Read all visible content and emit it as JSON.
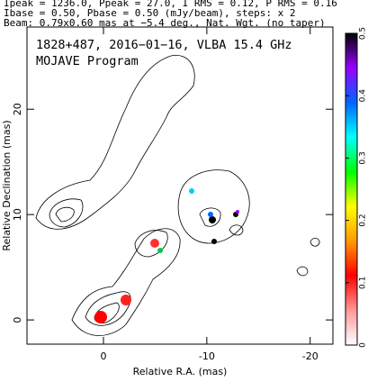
{
  "chart_data": {
    "type": "contour",
    "header": [
      "Ipeak = 1236.0, Ppeak = 27.0, I RMS = 0.12, P RMS = 0.16",
      "Ibase = 0.50, Pbase = 0.50 (mJy/beam), steps: x 2",
      "Beam: 0.79x0.60 mas at −5.4 deg., Nat. Wgt. (no taper)"
    ],
    "title": "1828+487, 2016−01−16, VLBA 15.4 GHz",
    "subtitle": "MOJAVE Program",
    "xlabel": "Relative R.A. (mas)",
    "ylabel": "Relative Declination (mas)",
    "xlim": [
      7.4,
      -22.2
    ],
    "ylim": [
      -2.3,
      27.8
    ],
    "xticks": [
      0,
      -10,
      -20
    ],
    "yticks": [
      0,
      10,
      20
    ],
    "colorbar": {
      "lim": [
        0,
        0.5
      ],
      "ticks": [
        0,
        0.1,
        0.2,
        0.3,
        0.4,
        0.5
      ],
      "colors": [
        "#ffffff",
        "#ff9999",
        "#ff0000",
        "#ff9900",
        "#ffff00",
        "#00ff00",
        "#00ffff",
        "#0066ff",
        "#9900ff",
        "#000000"
      ]
    }
  }
}
